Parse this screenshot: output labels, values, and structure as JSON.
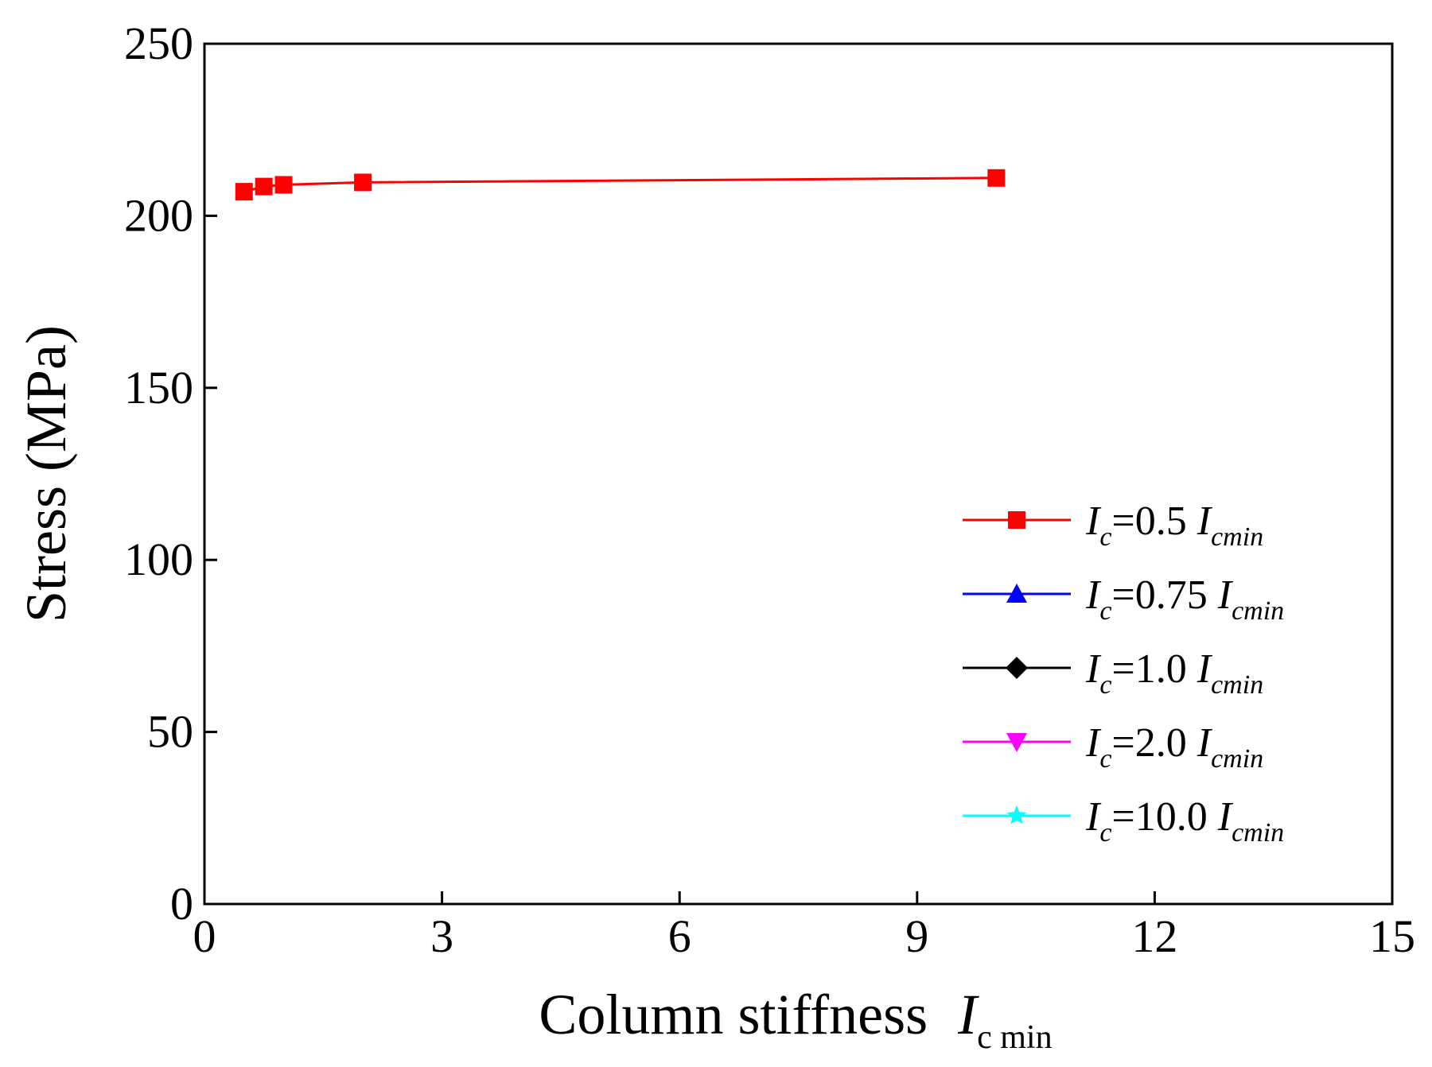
{
  "chart_data": {
    "type": "line",
    "xlabel": "Column stiffness",
    "xlabel_symbol": "I",
    "xlabel_sub": "c min",
    "ylabel": "Stress (MPa)",
    "xlim": [
      0,
      15
    ],
    "ylim": [
      0,
      250
    ],
    "xticks": [
      "0",
      "3",
      "6",
      "9",
      "12",
      "15"
    ],
    "yticks": [
      "0",
      "50",
      "100",
      "150",
      "200",
      "250"
    ],
    "grid": false,
    "legend_position": "right",
    "series": [
      {
        "name": "Ic=0.5 Icmin",
        "legend_symbol": "I",
        "legend_sub": "c",
        "legend_eq": "=0.5 ",
        "legend_sym2": "I",
        "legend_sub2": "cmin",
        "color": "#ff0000",
        "marker": "square",
        "x": [
          0.5,
          0.75,
          1.0,
          2.0,
          10.0
        ],
        "y": [
          207,
          208.5,
          209,
          209.7,
          211
        ]
      },
      {
        "name": "Ic=0.75 Icmin",
        "legend_symbol": "I",
        "legend_sub": "c",
        "legend_eq": "=0.75 ",
        "legend_sym2": "I",
        "legend_sub2": "cmin",
        "color": "#0000ff",
        "marker": "triangle-up",
        "x": [],
        "y": []
      },
      {
        "name": "Ic=1.0 Icmin",
        "legend_symbol": "I",
        "legend_sub": "c",
        "legend_eq": "=1.0 ",
        "legend_sym2": "I",
        "legend_sub2": "cmin",
        "color": "#000000",
        "marker": "diamond",
        "x": [],
        "y": []
      },
      {
        "name": "Ic=2.0 Icmin",
        "legend_symbol": "I",
        "legend_sub": "c",
        "legend_eq": "=2.0 ",
        "legend_sym2": "I",
        "legend_sub2": "cmin",
        "color": "#ff00ff",
        "marker": "triangle-down",
        "x": [],
        "y": []
      },
      {
        "name": "Ic=10.0 Icmin",
        "legend_symbol": "I",
        "legend_sub": "c",
        "legend_eq": "=10.0 ",
        "legend_sym2": "I",
        "legend_sub2": "cmin",
        "color": "#00ffff",
        "marker": "star",
        "x": [],
        "y": []
      }
    ]
  }
}
